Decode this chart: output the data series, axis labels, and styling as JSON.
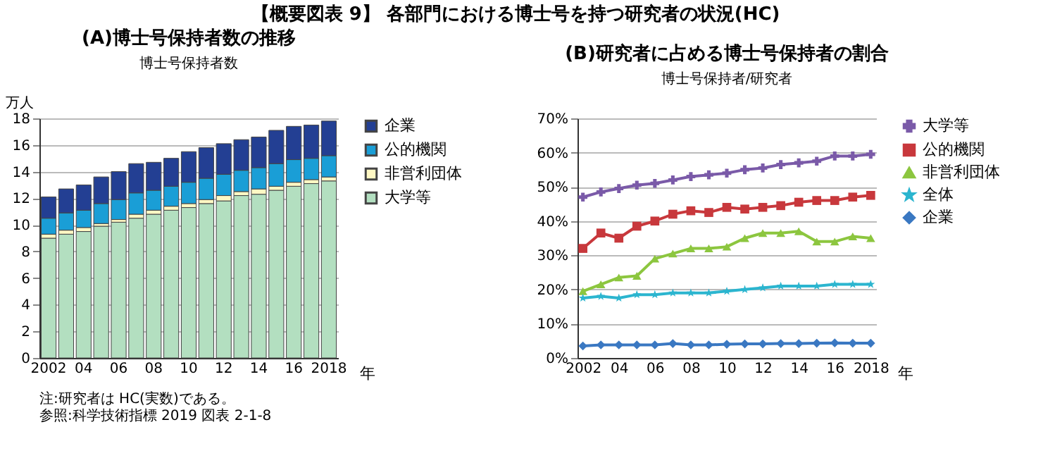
{
  "chart_data": [
    {
      "type": "bar",
      "stacked": true,
      "title": "(A)博士号保持者数の推移",
      "subtitle": "博士号保持者数",
      "ylabel": "万人",
      "xlabel": "年",
      "annotations": [
        "【概要図表 9】 各部門における博士号を持つ研究者の状況(HC)",
        "注:研究者は HC(実数)である。",
        "参照:科学技術指標 2019 図表 2-1-8"
      ],
      "categories": [
        "2002",
        null,
        "04",
        null,
        "06",
        null,
        "08",
        null,
        "10",
        null,
        "12",
        null,
        "14",
        null,
        "16",
        null,
        "2018"
      ],
      "ylim": [
        0,
        18
      ],
      "yticks": [
        0,
        2,
        4,
        6,
        8,
        10,
        12,
        14,
        16,
        18
      ],
      "grid": "y",
      "legend": "right",
      "series": [
        {
          "name": "大学等",
          "color": "#b3dfc0",
          "values": [
            9.0,
            9.3,
            9.5,
            9.9,
            10.2,
            10.5,
            10.8,
            11.1,
            11.3,
            11.6,
            11.8,
            12.2,
            12.3,
            12.6,
            12.9,
            13.1,
            13.3
          ]
        },
        {
          "name": "非営利団体",
          "color": "#fff8c4",
          "values": [
            0.3,
            0.3,
            0.3,
            0.2,
            0.2,
            0.3,
            0.3,
            0.3,
            0.3,
            0.3,
            0.4,
            0.3,
            0.4,
            0.3,
            0.3,
            0.3,
            0.3
          ]
        },
        {
          "name": "公的機関",
          "color": "#1a9ed6",
          "values": [
            1.2,
            1.3,
            1.3,
            1.5,
            1.5,
            1.6,
            1.5,
            1.5,
            1.6,
            1.6,
            1.6,
            1.6,
            1.6,
            1.7,
            1.7,
            1.6,
            1.6
          ]
        },
        {
          "name": "企業",
          "color": "#233f93",
          "values": [
            1.6,
            1.8,
            1.9,
            2.0,
            2.1,
            2.2,
            2.1,
            2.1,
            2.3,
            2.3,
            2.3,
            2.3,
            2.3,
            2.5,
            2.5,
            2.5,
            2.6
          ]
        }
      ]
    },
    {
      "type": "line",
      "title": "(B)研究者に占める博士号保持者の割合",
      "subtitle": "博士号保持者/研究者",
      "xlabel": "年",
      "categories": [
        "2002",
        null,
        "04",
        null,
        "06",
        null,
        "08",
        null,
        "10",
        null,
        "12",
        null,
        "14",
        null,
        "16",
        null,
        "2018"
      ],
      "ylim": [
        0,
        70
      ],
      "yticks": [
        {
          "value": 0,
          "label": "0%"
        },
        {
          "value": 10,
          "label": "10%"
        },
        {
          "value": 20,
          "label": "20%"
        },
        {
          "value": 30,
          "label": "30%"
        },
        {
          "value": 40,
          "label": "40%"
        },
        {
          "value": 50,
          "label": "50%"
        },
        {
          "value": 60,
          "label": "60%"
        },
        {
          "value": 70,
          "label": "70%"
        }
      ],
      "grid": "y",
      "legend": "right",
      "line_style": "solid",
      "series": [
        {
          "name": "大学等",
          "color": "#7a5aa8",
          "marker": "cross",
          "values": [
            47,
            48.5,
            49.5,
            50.5,
            51,
            52,
            53,
            53.5,
            54,
            55,
            55.5,
            56.5,
            57,
            57.5,
            59,
            59,
            59.5
          ]
        },
        {
          "name": "公的機関",
          "color": "#c8383c",
          "marker": "square",
          "values": [
            32,
            36.5,
            35,
            38.5,
            40,
            42,
            43,
            42.5,
            44,
            43.5,
            44,
            44.5,
            45.5,
            46,
            46,
            47,
            47.5
          ]
        },
        {
          "name": "非営利団体",
          "color": "#8cc63f",
          "marker": "triangle",
          "values": [
            19.5,
            21.5,
            23.5,
            24,
            29,
            30.5,
            32,
            32,
            32.5,
            35,
            36.5,
            36.5,
            37,
            34,
            34,
            35.5,
            35
          ]
        },
        {
          "name": "全体",
          "color": "#2bb5cf",
          "marker": "star",
          "values": [
            17.5,
            18,
            17.5,
            18.5,
            18.5,
            19,
            19,
            19,
            19.5,
            20,
            20.5,
            21,
            21,
            21,
            21.5,
            21.5,
            21.5
          ]
        },
        {
          "name": "企業",
          "color": "#3a78c2",
          "marker": "diamond",
          "values": [
            3.5,
            3.8,
            3.8,
            3.8,
            3.8,
            4.2,
            3.8,
            3.8,
            4,
            4.1,
            4.1,
            4.2,
            4.2,
            4.3,
            4.4,
            4.3,
            4.3
          ]
        }
      ]
    }
  ]
}
